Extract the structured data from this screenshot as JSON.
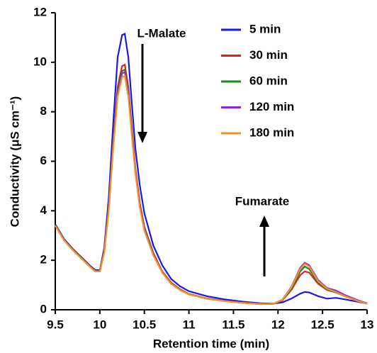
{
  "chart_data": {
    "type": "line",
    "xlabel": "Retention time (min)",
    "ylabel": "Conductivity (μS cm⁻¹)",
    "annotations": [
      "L-Malate",
      "Fumarate"
    ],
    "legend": "upper right",
    "xlim": [
      9.5,
      13
    ],
    "xticks": [
      9.5,
      10,
      10.5,
      11,
      11.5,
      12,
      12.5,
      13
    ],
    "ylim": [
      0,
      12
    ],
    "yticks": [
      0,
      2,
      4,
      6,
      8,
      10,
      12
    ],
    "x": [
      9.5,
      9.6,
      9.7,
      9.8,
      9.9,
      9.95,
      10.0,
      10.05,
      10.1,
      10.15,
      10.2,
      10.25,
      10.28,
      10.32,
      10.36,
      10.4,
      10.45,
      10.5,
      10.6,
      10.7,
      10.8,
      10.9,
      11.0,
      11.2,
      11.4,
      11.6,
      11.8,
      11.95,
      12.05,
      12.15,
      12.25,
      12.3,
      12.35,
      12.45,
      12.55,
      12.65,
      12.75,
      12.9,
      13.0
    ],
    "series": [
      {
        "name": "5 min",
        "color": "#1a1adf",
        "values": [
          3.45,
          2.85,
          2.45,
          2.1,
          1.75,
          1.6,
          1.6,
          2.5,
          4.5,
          7.5,
          10.2,
          11.1,
          11.15,
          10.2,
          8.3,
          6.5,
          5.0,
          3.9,
          2.6,
          1.8,
          1.25,
          0.95,
          0.75,
          0.55,
          0.42,
          0.33,
          0.26,
          0.25,
          0.3,
          0.45,
          0.65,
          0.72,
          0.7,
          0.55,
          0.45,
          0.48,
          0.42,
          0.32,
          0.25
        ]
      },
      {
        "name": "30 min",
        "color": "#e02020",
        "values": [
          3.42,
          2.82,
          2.42,
          2.07,
          1.72,
          1.57,
          1.57,
          2.4,
          4.2,
          6.8,
          9.0,
          9.85,
          9.9,
          9.0,
          7.3,
          5.7,
          4.3,
          3.35,
          2.3,
          1.55,
          1.1,
          0.83,
          0.64,
          0.46,
          0.36,
          0.29,
          0.24,
          0.24,
          0.38,
          0.8,
          1.4,
          1.55,
          1.5,
          1.05,
          0.8,
          0.7,
          0.55,
          0.36,
          0.26
        ]
      },
      {
        "name": "60 min",
        "color": "#1a8a1a",
        "values": [
          3.41,
          2.81,
          2.41,
          2.06,
          1.71,
          1.56,
          1.56,
          2.35,
          4.1,
          6.7,
          8.85,
          9.65,
          9.7,
          8.85,
          7.2,
          5.6,
          4.2,
          3.3,
          2.25,
          1.52,
          1.07,
          0.81,
          0.63,
          0.45,
          0.35,
          0.28,
          0.23,
          0.24,
          0.39,
          0.85,
          1.55,
          1.75,
          1.65,
          1.1,
          0.82,
          0.71,
          0.55,
          0.35,
          0.25
        ]
      },
      {
        "name": "120 min",
        "color": "#8a2be2",
        "values": [
          3.4,
          2.8,
          2.4,
          2.05,
          1.7,
          1.55,
          1.55,
          2.32,
          4.05,
          6.6,
          8.75,
          9.55,
          9.6,
          8.75,
          7.1,
          5.55,
          4.15,
          3.25,
          2.22,
          1.51,
          1.06,
          0.8,
          0.62,
          0.45,
          0.35,
          0.28,
          0.23,
          0.24,
          0.41,
          0.92,
          1.7,
          1.9,
          1.8,
          1.2,
          0.88,
          0.78,
          0.6,
          0.38,
          0.26
        ]
      },
      {
        "name": "180 min",
        "color": "#f5922a",
        "values": [
          3.4,
          2.8,
          2.4,
          2.05,
          1.7,
          1.55,
          1.55,
          2.3,
          4.0,
          6.5,
          8.6,
          9.4,
          9.45,
          8.6,
          7.0,
          5.5,
          4.1,
          3.2,
          2.2,
          1.5,
          1.05,
          0.8,
          0.62,
          0.45,
          0.35,
          0.28,
          0.23,
          0.24,
          0.4,
          0.9,
          1.65,
          1.85,
          1.75,
          1.15,
          0.85,
          0.72,
          0.55,
          0.35,
          0.25
        ]
      }
    ]
  }
}
